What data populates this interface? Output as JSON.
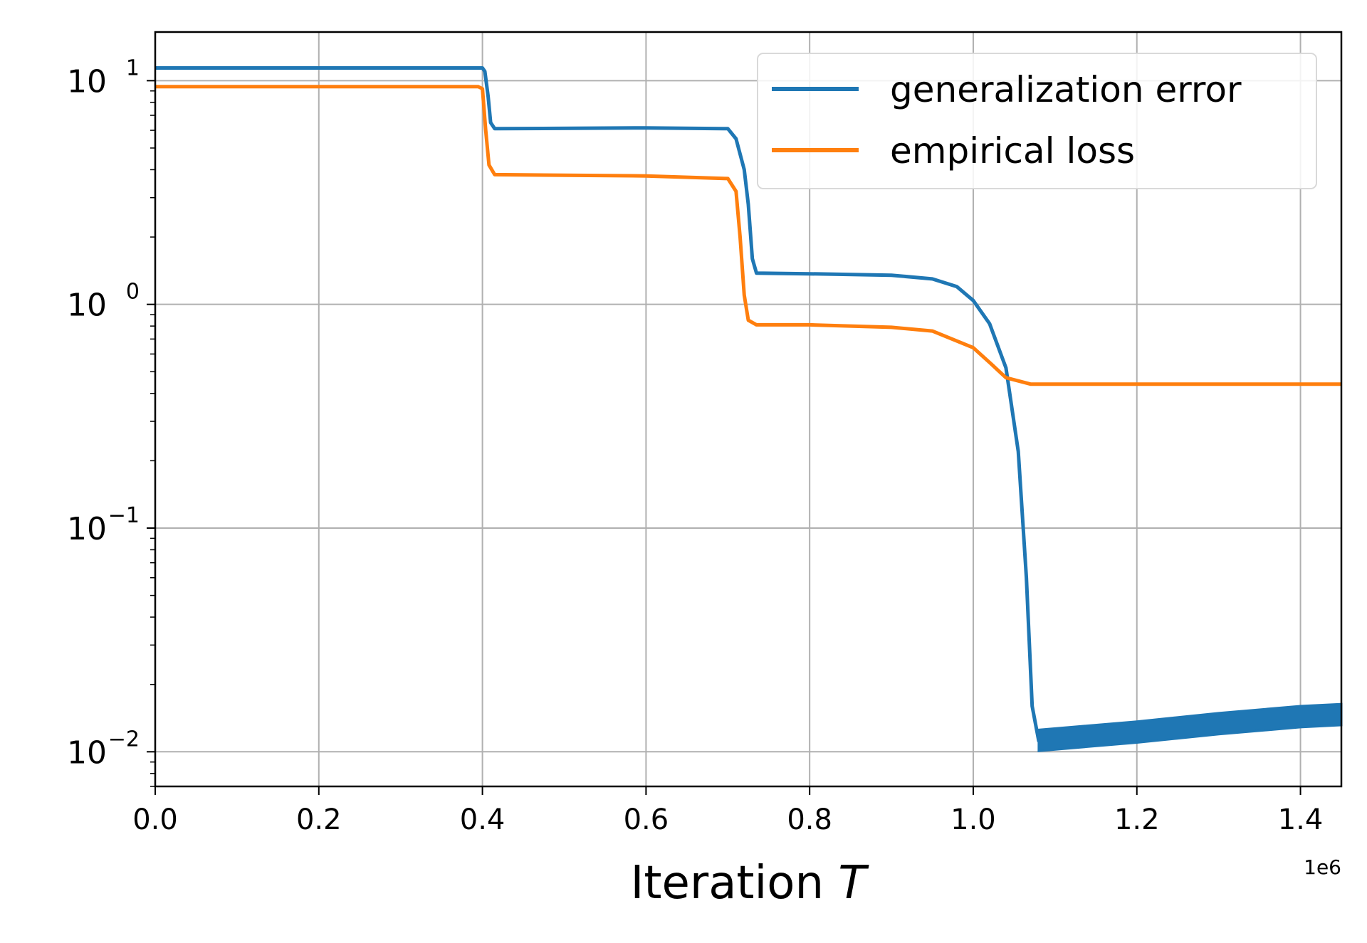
{
  "chart_data": {
    "type": "line",
    "xlabel": "Iteration",
    "xlabel_var": "T",
    "x_offset": "1e6",
    "xlim": [
      0.0,
      1.45
    ],
    "yscale": "log",
    "ylim": [
      0.007,
      16.5
    ],
    "xticks": [
      "0.0",
      "0.2",
      "0.4",
      "0.6",
      "0.8",
      "1.0",
      "1.2",
      "1.4"
    ],
    "yticks": [
      {
        "base": "10",
        "exp": "1"
      },
      {
        "base": "10",
        "exp": "0"
      },
      {
        "base": "10",
        "exp": "−1"
      },
      {
        "base": "10",
        "exp": "−2"
      }
    ],
    "grid": true,
    "legend_position": "upper right",
    "series": [
      {
        "name": "generalization error",
        "color": "#1f77b4",
        "points": [
          [
            0.0,
            11.4
          ],
          [
            0.4,
            11.4
          ],
          [
            0.403,
            11.0
          ],
          [
            0.407,
            8.5
          ],
          [
            0.41,
            6.5
          ],
          [
            0.415,
            6.1
          ],
          [
            0.6,
            6.15
          ],
          [
            0.7,
            6.1
          ],
          [
            0.71,
            5.5
          ],
          [
            0.72,
            4.0
          ],
          [
            0.725,
            2.8
          ],
          [
            0.73,
            1.6
          ],
          [
            0.735,
            1.38
          ],
          [
            0.8,
            1.37
          ],
          [
            0.9,
            1.35
          ],
          [
            0.95,
            1.3
          ],
          [
            0.98,
            1.2
          ],
          [
            1.0,
            1.04
          ],
          [
            1.02,
            0.82
          ],
          [
            1.04,
            0.52
          ],
          [
            1.055,
            0.22
          ],
          [
            1.065,
            0.06
          ],
          [
            1.072,
            0.016
          ],
          [
            1.08,
            0.0112
          ],
          [
            1.2,
            0.0122
          ],
          [
            1.3,
            0.0133
          ],
          [
            1.4,
            0.0143
          ],
          [
            1.45,
            0.0146
          ]
        ]
      },
      {
        "name": "empirical loss",
        "color": "#ff7f0e",
        "points": [
          [
            0.0,
            9.4
          ],
          [
            0.395,
            9.4
          ],
          [
            0.4,
            9.2
          ],
          [
            0.404,
            6.0
          ],
          [
            0.408,
            4.2
          ],
          [
            0.415,
            3.8
          ],
          [
            0.6,
            3.75
          ],
          [
            0.7,
            3.65
          ],
          [
            0.71,
            3.2
          ],
          [
            0.715,
            2.0
          ],
          [
            0.72,
            1.1
          ],
          [
            0.725,
            0.85
          ],
          [
            0.735,
            0.81
          ],
          [
            0.8,
            0.81
          ],
          [
            0.9,
            0.79
          ],
          [
            0.95,
            0.76
          ],
          [
            1.0,
            0.64
          ],
          [
            1.02,
            0.55
          ],
          [
            1.04,
            0.47
          ],
          [
            1.07,
            0.44
          ],
          [
            1.2,
            0.44
          ],
          [
            1.45,
            0.44
          ]
        ]
      }
    ]
  }
}
